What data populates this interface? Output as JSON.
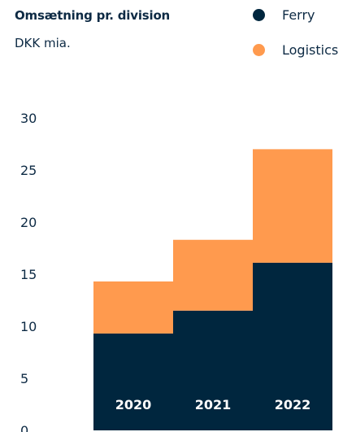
{
  "chart_data": {
    "type": "bar",
    "stacked": true,
    "title": "Omsætning pr. division",
    "subtitle": "DKK mia.",
    "categories": [
      "2020",
      "2021",
      "2022"
    ],
    "series": [
      {
        "name": "Ferry",
        "color": "#00263e",
        "values": [
          9.3,
          11.5,
          16.1
        ]
      },
      {
        "name": "Logistics",
        "color": "#ff9a4e",
        "values": [
          5.0,
          6.8,
          10.9
        ]
      }
    ],
    "yticks": [
      "0",
      "5",
      "10",
      "15",
      "20",
      "25",
      "30"
    ],
    "ylim": [
      0,
      30
    ],
    "legend_position": "top-right",
    "grid": false
  }
}
